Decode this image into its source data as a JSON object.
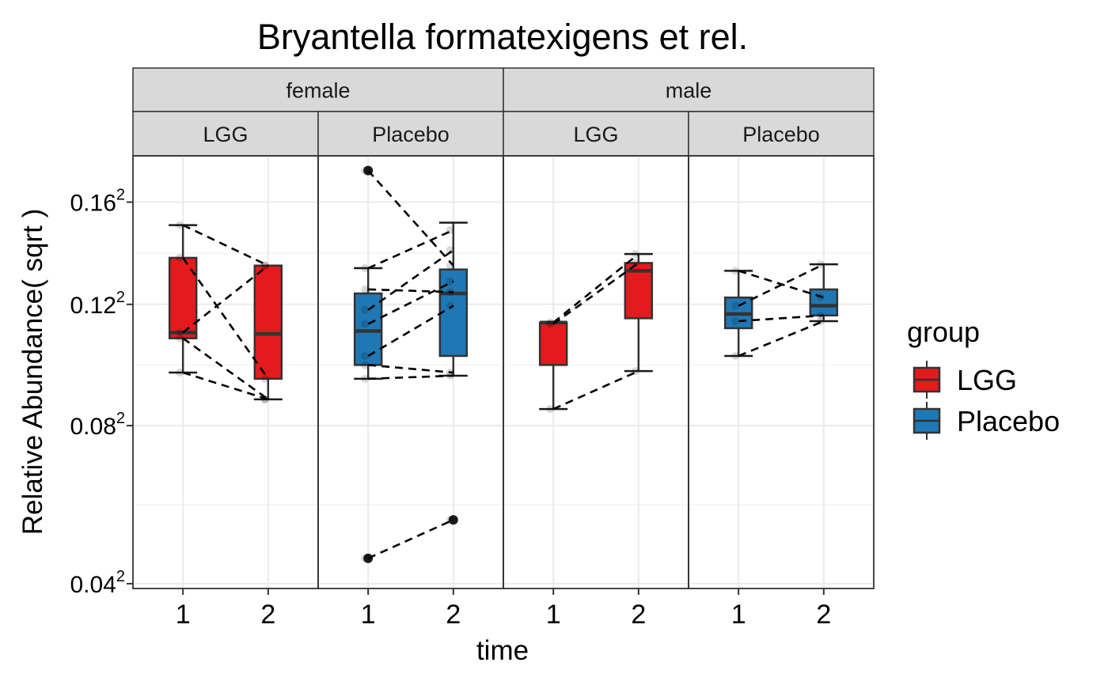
{
  "chart_data": {
    "type": "boxplot",
    "title": "Bryantella formatexigens et rel.",
    "xlabel": "time",
    "ylabel": "Relative Abundance( sqrt )",
    "y_scale": "sqrt",
    "y_ticks": [
      {
        "value": 0.04,
        "base": "0.04",
        "exp": "2"
      },
      {
        "value": 0.08,
        "base": "0.08",
        "exp": "2"
      },
      {
        "value": 0.12,
        "base": "0.12",
        "exp": "2"
      },
      {
        "value": 0.16,
        "base": "0.16",
        "exp": "2"
      }
    ],
    "y_range_sqrt": [
      0.039,
      0.18
    ],
    "x_categories": [
      "1",
      "2"
    ],
    "grid": true,
    "legend": {
      "title": "group",
      "placement": "right",
      "items": [
        {
          "label": "LGG",
          "color": "#E41A1C"
        },
        {
          "label": "Placebo",
          "color": "#1F78B4"
        }
      ]
    },
    "facets": [
      {
        "row_label": "female",
        "col_label": "LGG",
        "group": "LGG",
        "boxes": [
          {
            "time": "1",
            "whisker_low": 0.0965,
            "q1": 0.108,
            "median": 0.11,
            "q3": 0.1375,
            "whisker_high": 0.1505,
            "outliers": []
          },
          {
            "time": "2",
            "whisker_low": 0.088,
            "q1": 0.0945,
            "median": 0.1095,
            "q3": 0.1345,
            "whisker_high": 0.1345,
            "outliers": []
          }
        ],
        "pairs": [
          [
            0.1505,
            0.1345
          ],
          [
            0.1375,
            0.0945
          ],
          [
            0.11,
            0.1345
          ],
          [
            0.108,
            0.088
          ],
          [
            0.0965,
            0.088
          ]
        ]
      },
      {
        "row_label": "female",
        "col_label": "Placebo",
        "group": "Placebo",
        "boxes": [
          {
            "time": "1",
            "whisker_low": 0.0945,
            "q1": 0.099,
            "median": 0.1105,
            "q3": 0.124,
            "whisker_high": 0.1335,
            "outliers": [
              0.1735,
              0.0455
            ]
          },
          {
            "time": "2",
            "whisker_low": 0.0955,
            "q1": 0.102,
            "median": 0.124,
            "q3": 0.133,
            "whisker_high": 0.1515,
            "outliers": [
              0.0545
            ]
          }
        ],
        "pairs": [
          [
            0.1735,
            0.1345
          ],
          [
            0.1335,
            0.1485
          ],
          [
            0.1255,
            0.1245
          ],
          [
            0.118,
            0.1405
          ],
          [
            0.113,
            0.1285
          ],
          [
            0.102,
            0.1195
          ],
          [
            0.099,
            0.0965
          ],
          [
            0.0945,
            0.0955
          ],
          [
            0.0455,
            0.0545
          ]
        ]
      },
      {
        "row_label": "male",
        "col_label": "LGG",
        "group": "LGG",
        "boxes": [
          {
            "time": "1",
            "whisker_low": 0.085,
            "q1": 0.099,
            "median": 0.1135,
            "q3": 0.1135,
            "whisker_high": 0.1135,
            "outliers": []
          },
          {
            "time": "2",
            "whisker_low": 0.097,
            "q1": 0.115,
            "median": 0.1325,
            "q3": 0.1355,
            "whisker_high": 0.139,
            "outliers": []
          }
        ],
        "pairs": [
          [
            0.1135,
            0.139
          ],
          [
            0.113,
            0.1355
          ],
          [
            0.085,
            0.097
          ]
        ]
      },
      {
        "row_label": "male",
        "col_label": "Placebo",
        "group": "Placebo",
        "boxes": [
          {
            "time": "1",
            "whisker_low": 0.102,
            "q1": 0.1115,
            "median": 0.1165,
            "q3": 0.1225,
            "whisker_high": 0.1325,
            "outliers": []
          },
          {
            "time": "2",
            "whisker_low": 0.114,
            "q1": 0.116,
            "median": 0.1195,
            "q3": 0.1255,
            "whisker_high": 0.135,
            "outliers": []
          }
        ],
        "pairs": [
          [
            0.1325,
            0.1225
          ],
          [
            0.1195,
            0.135
          ],
          [
            0.114,
            0.116
          ],
          [
            0.102,
            0.114
          ]
        ]
      }
    ]
  }
}
